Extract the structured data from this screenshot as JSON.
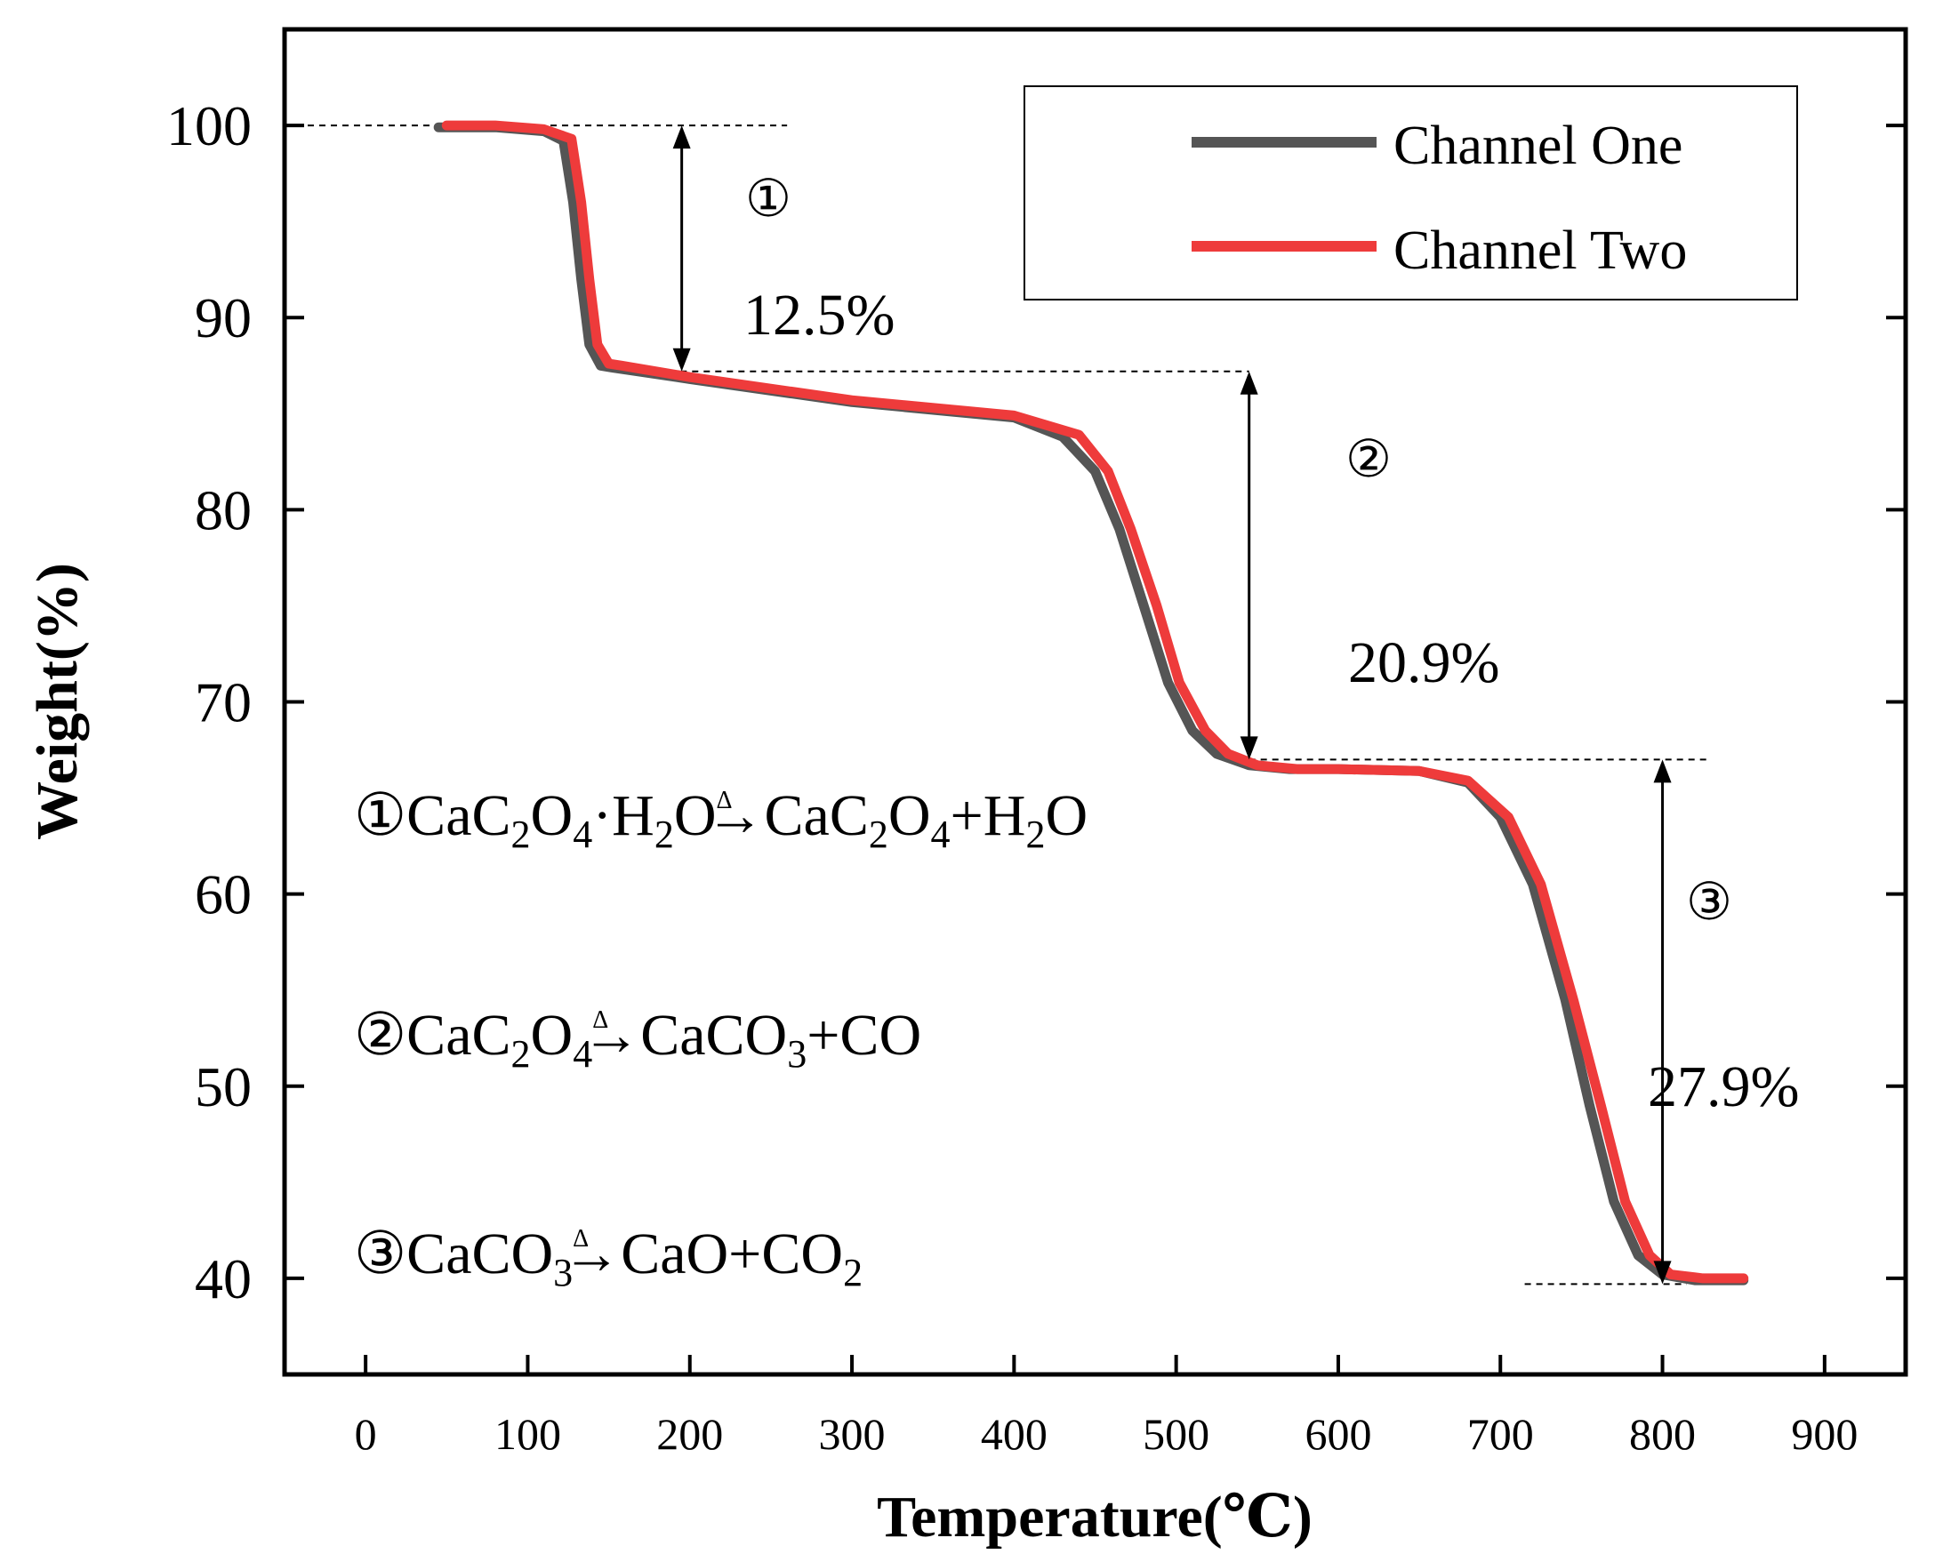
{
  "chart_data": {
    "type": "line",
    "title": "",
    "xlabel": "Temperature(℃)",
    "ylabel": "Weight(%)",
    "xlim": [
      -50,
      950
    ],
    "ylim": [
      35,
      105
    ],
    "xticks": [
      0,
      100,
      200,
      300,
      400,
      500,
      600,
      700,
      800,
      900
    ],
    "yticks": [
      40,
      50,
      60,
      70,
      80,
      90,
      100
    ],
    "legend_position": "top-right",
    "series": [
      {
        "name": "Channel One",
        "color": "#555555",
        "x": [
          45,
          80,
          110,
          122,
          128,
          133,
          138,
          145,
          152,
          200,
          300,
          400,
          430,
          450,
          465,
          480,
          495,
          510,
          525,
          545,
          570,
          600,
          650,
          680,
          700,
          720,
          740,
          755,
          770,
          785,
          800,
          820,
          850
        ],
        "y": [
          99.9,
          99.9,
          99.7,
          99.2,
          96,
          92,
          88.6,
          87.5,
          87.4,
          86.8,
          85.6,
          84.8,
          83.8,
          82.0,
          79.0,
          75.0,
          71.0,
          68.5,
          67.3,
          66.7,
          66.5,
          66.5,
          66.4,
          65.8,
          64.0,
          60.5,
          54.5,
          49.0,
          44.0,
          41.2,
          40.2,
          39.9,
          39.9
        ]
      },
      {
        "name": "Channel Two",
        "color": "#ee3b3b",
        "x": [
          50,
          80,
          110,
          127,
          133,
          138,
          143,
          150,
          158,
          200,
          300,
          400,
          440,
          458,
          472,
          488,
          502,
          518,
          532,
          550,
          575,
          600,
          650,
          680,
          705,
          725,
          745,
          762,
          777,
          792,
          805,
          825,
          850
        ],
        "y": [
          100,
          100,
          99.8,
          99.3,
          96,
          92,
          88.6,
          87.6,
          87.5,
          86.9,
          85.7,
          84.9,
          83.9,
          82.0,
          79.0,
          75.0,
          71.0,
          68.5,
          67.3,
          66.7,
          66.5,
          66.5,
          66.4,
          65.9,
          64.0,
          60.5,
          54.5,
          49.0,
          44.0,
          41.2,
          40.2,
          40.0,
          40.0
        ]
      }
    ],
    "annotations": {
      "step1": {
        "circle": "①",
        "loss": "12.5%"
      },
      "step2": {
        "circle": "②",
        "loss": "20.9%"
      },
      "step3": {
        "circle": "③",
        "loss": "27.9%"
      }
    },
    "reference_levels": [
      {
        "y": 100,
        "x": [
          -50,
          260
        ]
      },
      {
        "y": 87.2,
        "x": [
          180,
          545
        ]
      },
      {
        "y": 67.0,
        "x": [
          545,
          830
        ]
      },
      {
        "y": 39.7,
        "x": [
          715,
          815
        ]
      }
    ],
    "arrows": [
      {
        "x": 195,
        "y": [
          100,
          87.2
        ]
      },
      {
        "x": 545,
        "y": [
          87.2,
          67.0
        ]
      },
      {
        "x": 800,
        "y": [
          67.0,
          39.7
        ]
      }
    ],
    "equations": [
      {
        "circle": "①",
        "left": [
          {
            "t": "CaC"
          },
          {
            "s": "2"
          },
          {
            "t": "O"
          },
          {
            "s": "4"
          },
          {
            "t": "·H"
          },
          {
            "s": "2"
          },
          {
            "t": "O"
          }
        ],
        "delta": "Δ",
        "right": [
          {
            "t": "CaC"
          },
          {
            "s": "2"
          },
          {
            "t": "O"
          },
          {
            "s": "4"
          },
          {
            "t": "+H"
          },
          {
            "s": "2"
          },
          {
            "t": "O"
          }
        ]
      },
      {
        "circle": "②",
        "left": [
          {
            "t": "CaC"
          },
          {
            "s": "2"
          },
          {
            "t": "O"
          },
          {
            "s": "4"
          }
        ],
        "delta": "Δ",
        "right": [
          {
            "t": "CaCO"
          },
          {
            "s": "3"
          },
          {
            "t": "+CO"
          }
        ]
      },
      {
        "circle": "③",
        "left": [
          {
            "t": "CaCO"
          },
          {
            "s": "3"
          }
        ],
        "delta": "Δ",
        "right": [
          {
            "t": "CaO+CO"
          },
          {
            "s": "2"
          }
        ]
      }
    ]
  }
}
